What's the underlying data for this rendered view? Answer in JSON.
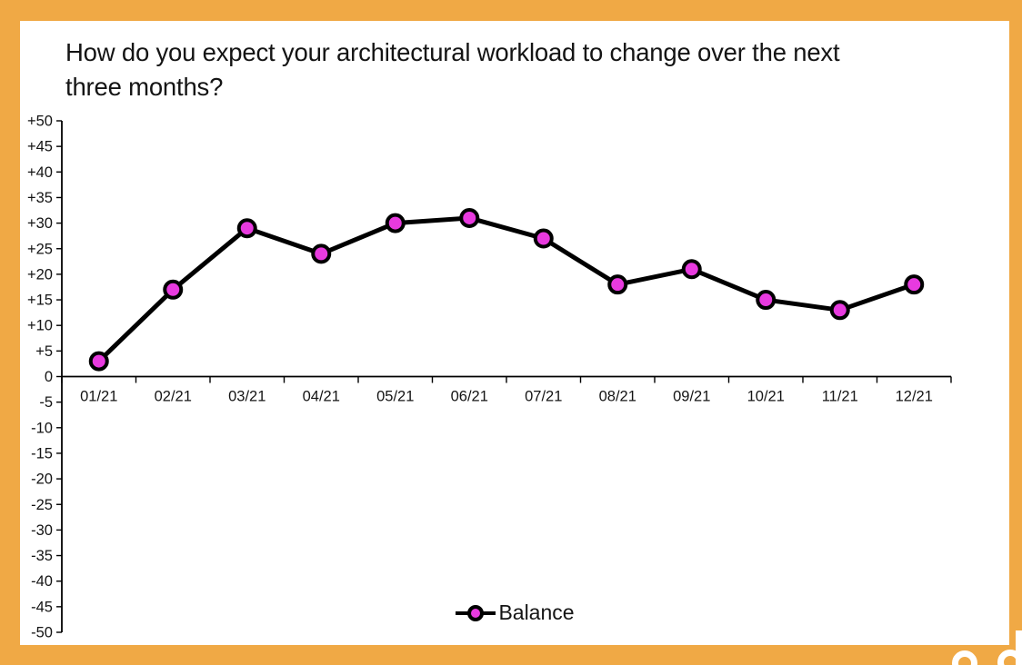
{
  "frame": {
    "border_color": "#F0A945",
    "background": "#FFFFFF"
  },
  "title_lines": [
    "How do you expect your architectural workload to change over the next",
    "three months?"
  ],
  "chart_data": {
    "type": "line",
    "title": "How do you expect your architectural workload to change over the next three months?",
    "categories": [
      "01/21",
      "02/21",
      "03/21",
      "04/21",
      "05/21",
      "06/21",
      "07/21",
      "08/21",
      "09/21",
      "10/21",
      "11/21",
      "12/21"
    ],
    "series": [
      {
        "name": "Balance",
        "values": [
          3,
          17,
          29,
          24,
          30,
          31,
          27,
          18,
          21,
          15,
          13,
          18
        ]
      }
    ],
    "xlabel": "",
    "ylabel": "",
    "ylim": [
      -50,
      50
    ],
    "ytick_step": 5,
    "ytick_labels": [
      "+50",
      "+45",
      "+40",
      "+35",
      "+30",
      "+25",
      "+20",
      "+15",
      "+10",
      "+5",
      "0",
      "-5",
      "-10",
      "-15",
      "-20",
      "-25",
      "-30",
      "-35",
      "-40",
      "-45",
      "-50"
    ],
    "grid": false,
    "legend_position": "bottom-center",
    "colors": {
      "line": "#000000",
      "marker_fill": "#E83ADF",
      "marker_stroke": "#000000",
      "axis": "#000000",
      "text": "#141414"
    }
  }
}
